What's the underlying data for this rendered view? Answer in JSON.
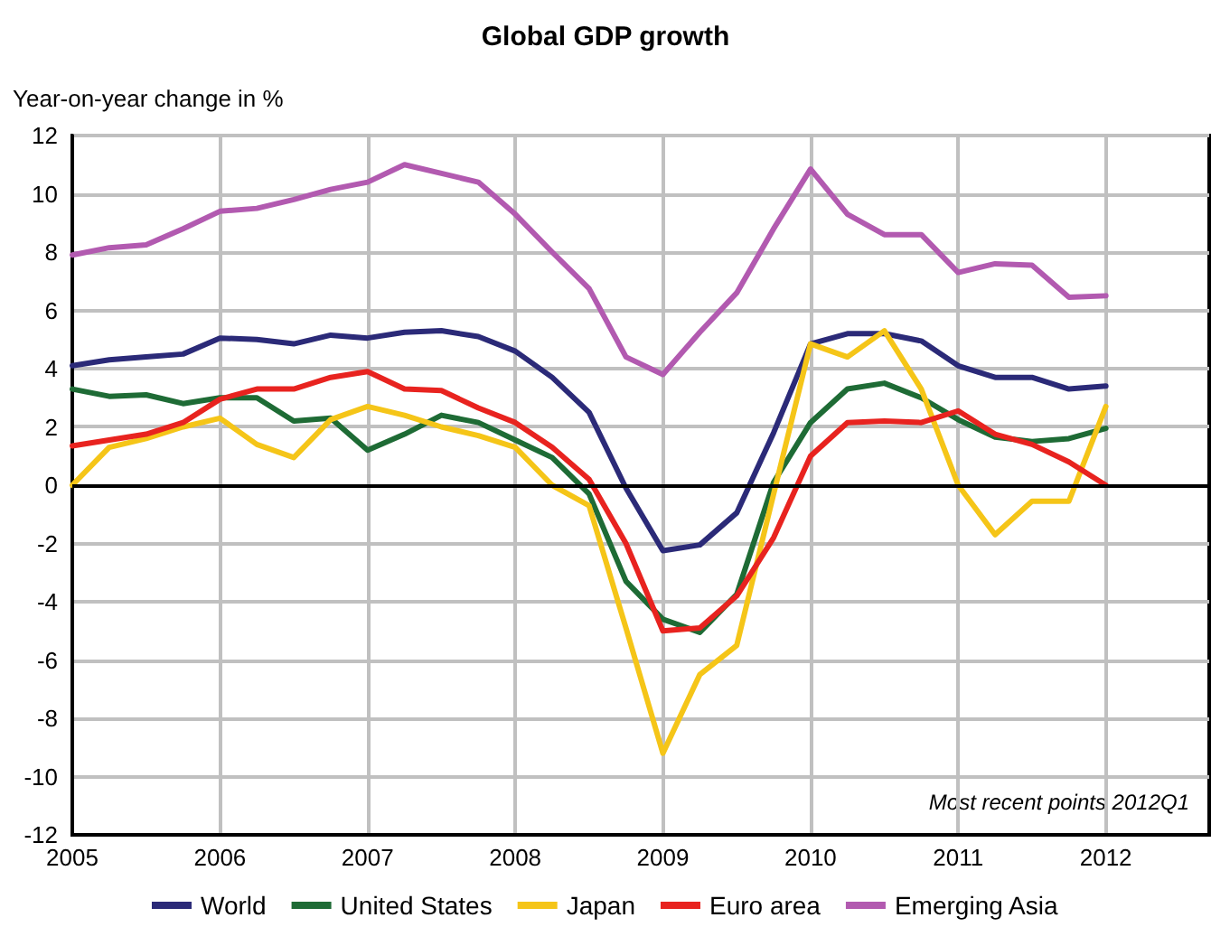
{
  "chart_data": {
    "type": "line",
    "title": "Global GDP growth",
    "ylabel": "Year-on-year change in %",
    "annotations": [
      "Most recent points 2012Q1"
    ],
    "x": [
      2005,
      2005.25,
      2005.5,
      2005.75,
      2006,
      2006.25,
      2006.5,
      2006.75,
      2007,
      2007.25,
      2007.5,
      2007.75,
      2008,
      2008.25,
      2008.5,
      2008.75,
      2009,
      2009.25,
      2009.5,
      2009.75,
      2010,
      2010.25,
      2010.5,
      2010.75,
      2011,
      2011.25,
      2011.5,
      2011.75,
      2012
    ],
    "series": [
      {
        "name": "World",
        "color": "#2b2a78",
        "values": [
          4.1,
          4.3,
          4.4,
          4.5,
          5.05,
          5.0,
          4.85,
          5.15,
          5.05,
          5.25,
          5.3,
          5.1,
          4.6,
          3.7,
          2.5,
          -0.1,
          -2.25,
          -2.05,
          -0.95,
          1.8,
          4.85,
          5.2,
          5.2,
          4.95,
          4.1,
          3.7,
          3.7,
          3.3,
          3.4
        ]
      },
      {
        "name": "United States",
        "color": "#1e6b35",
        "values": [
          3.3,
          3.05,
          3.1,
          2.8,
          3.0,
          3.0,
          2.2,
          2.3,
          1.2,
          1.75,
          2.4,
          2.15,
          1.55,
          0.95,
          -0.3,
          -3.3,
          -4.6,
          -5.05,
          -3.75,
          0.1,
          2.15,
          3.3,
          3.5,
          3.0,
          2.25,
          1.65,
          1.5,
          1.6,
          1.95
        ]
      },
      {
        "name": "Japan",
        "color": "#f5c518",
        "values": [
          0,
          1.3,
          1.6,
          2.0,
          2.3,
          1.4,
          0.95,
          2.25,
          2.7,
          2.4,
          2.0,
          1.7,
          1.3,
          0,
          -0.7,
          -4.9,
          -9.2,
          -6.5,
          -5.5,
          -0.3,
          4.85,
          4.4,
          5.3,
          3.3,
          0,
          -1.7,
          -0.55,
          -0.55,
          2.7
        ]
      },
      {
        "name": "Euro area",
        "color": "#e8231f",
        "values": [
          1.35,
          1.55,
          1.75,
          2.15,
          2.95,
          3.3,
          3.3,
          3.7,
          3.9,
          3.3,
          3.25,
          2.65,
          2.15,
          1.3,
          0.2,
          -2.0,
          -5.0,
          -4.9,
          -3.8,
          -1.8,
          1.0,
          2.15,
          2.2,
          2.15,
          2.55,
          1.75,
          1.4,
          0.8,
          0
        ]
      },
      {
        "name": "Emerging Asia",
        "color": "#b25ab0",
        "values": [
          7.9,
          8.15,
          8.25,
          8.8,
          9.4,
          9.5,
          9.8,
          10.15,
          10.4,
          11.0,
          10.7,
          10.4,
          9.3,
          8.0,
          6.75,
          4.4,
          3.8,
          5.25,
          6.6,
          8.8,
          10.85,
          9.3,
          8.6,
          8.6,
          7.3,
          7.6,
          7.55,
          6.45,
          6.5
        ]
      }
    ],
    "xlim": [
      2005,
      2012.7
    ],
    "xticks": [
      2005,
      2006,
      2007,
      2008,
      2009,
      2010,
      2011,
      2012
    ],
    "ylim": [
      -12,
      12
    ],
    "yticks": [
      -12,
      -10,
      -8,
      -6,
      -4,
      -2,
      0,
      2,
      4,
      6,
      8,
      10,
      12
    ],
    "ref_lines": [
      {
        "axis": "y",
        "value": 0,
        "color": "#000000"
      }
    ],
    "grid": true,
    "legend": "bottom",
    "marker": "none",
    "line_style": "solid"
  }
}
